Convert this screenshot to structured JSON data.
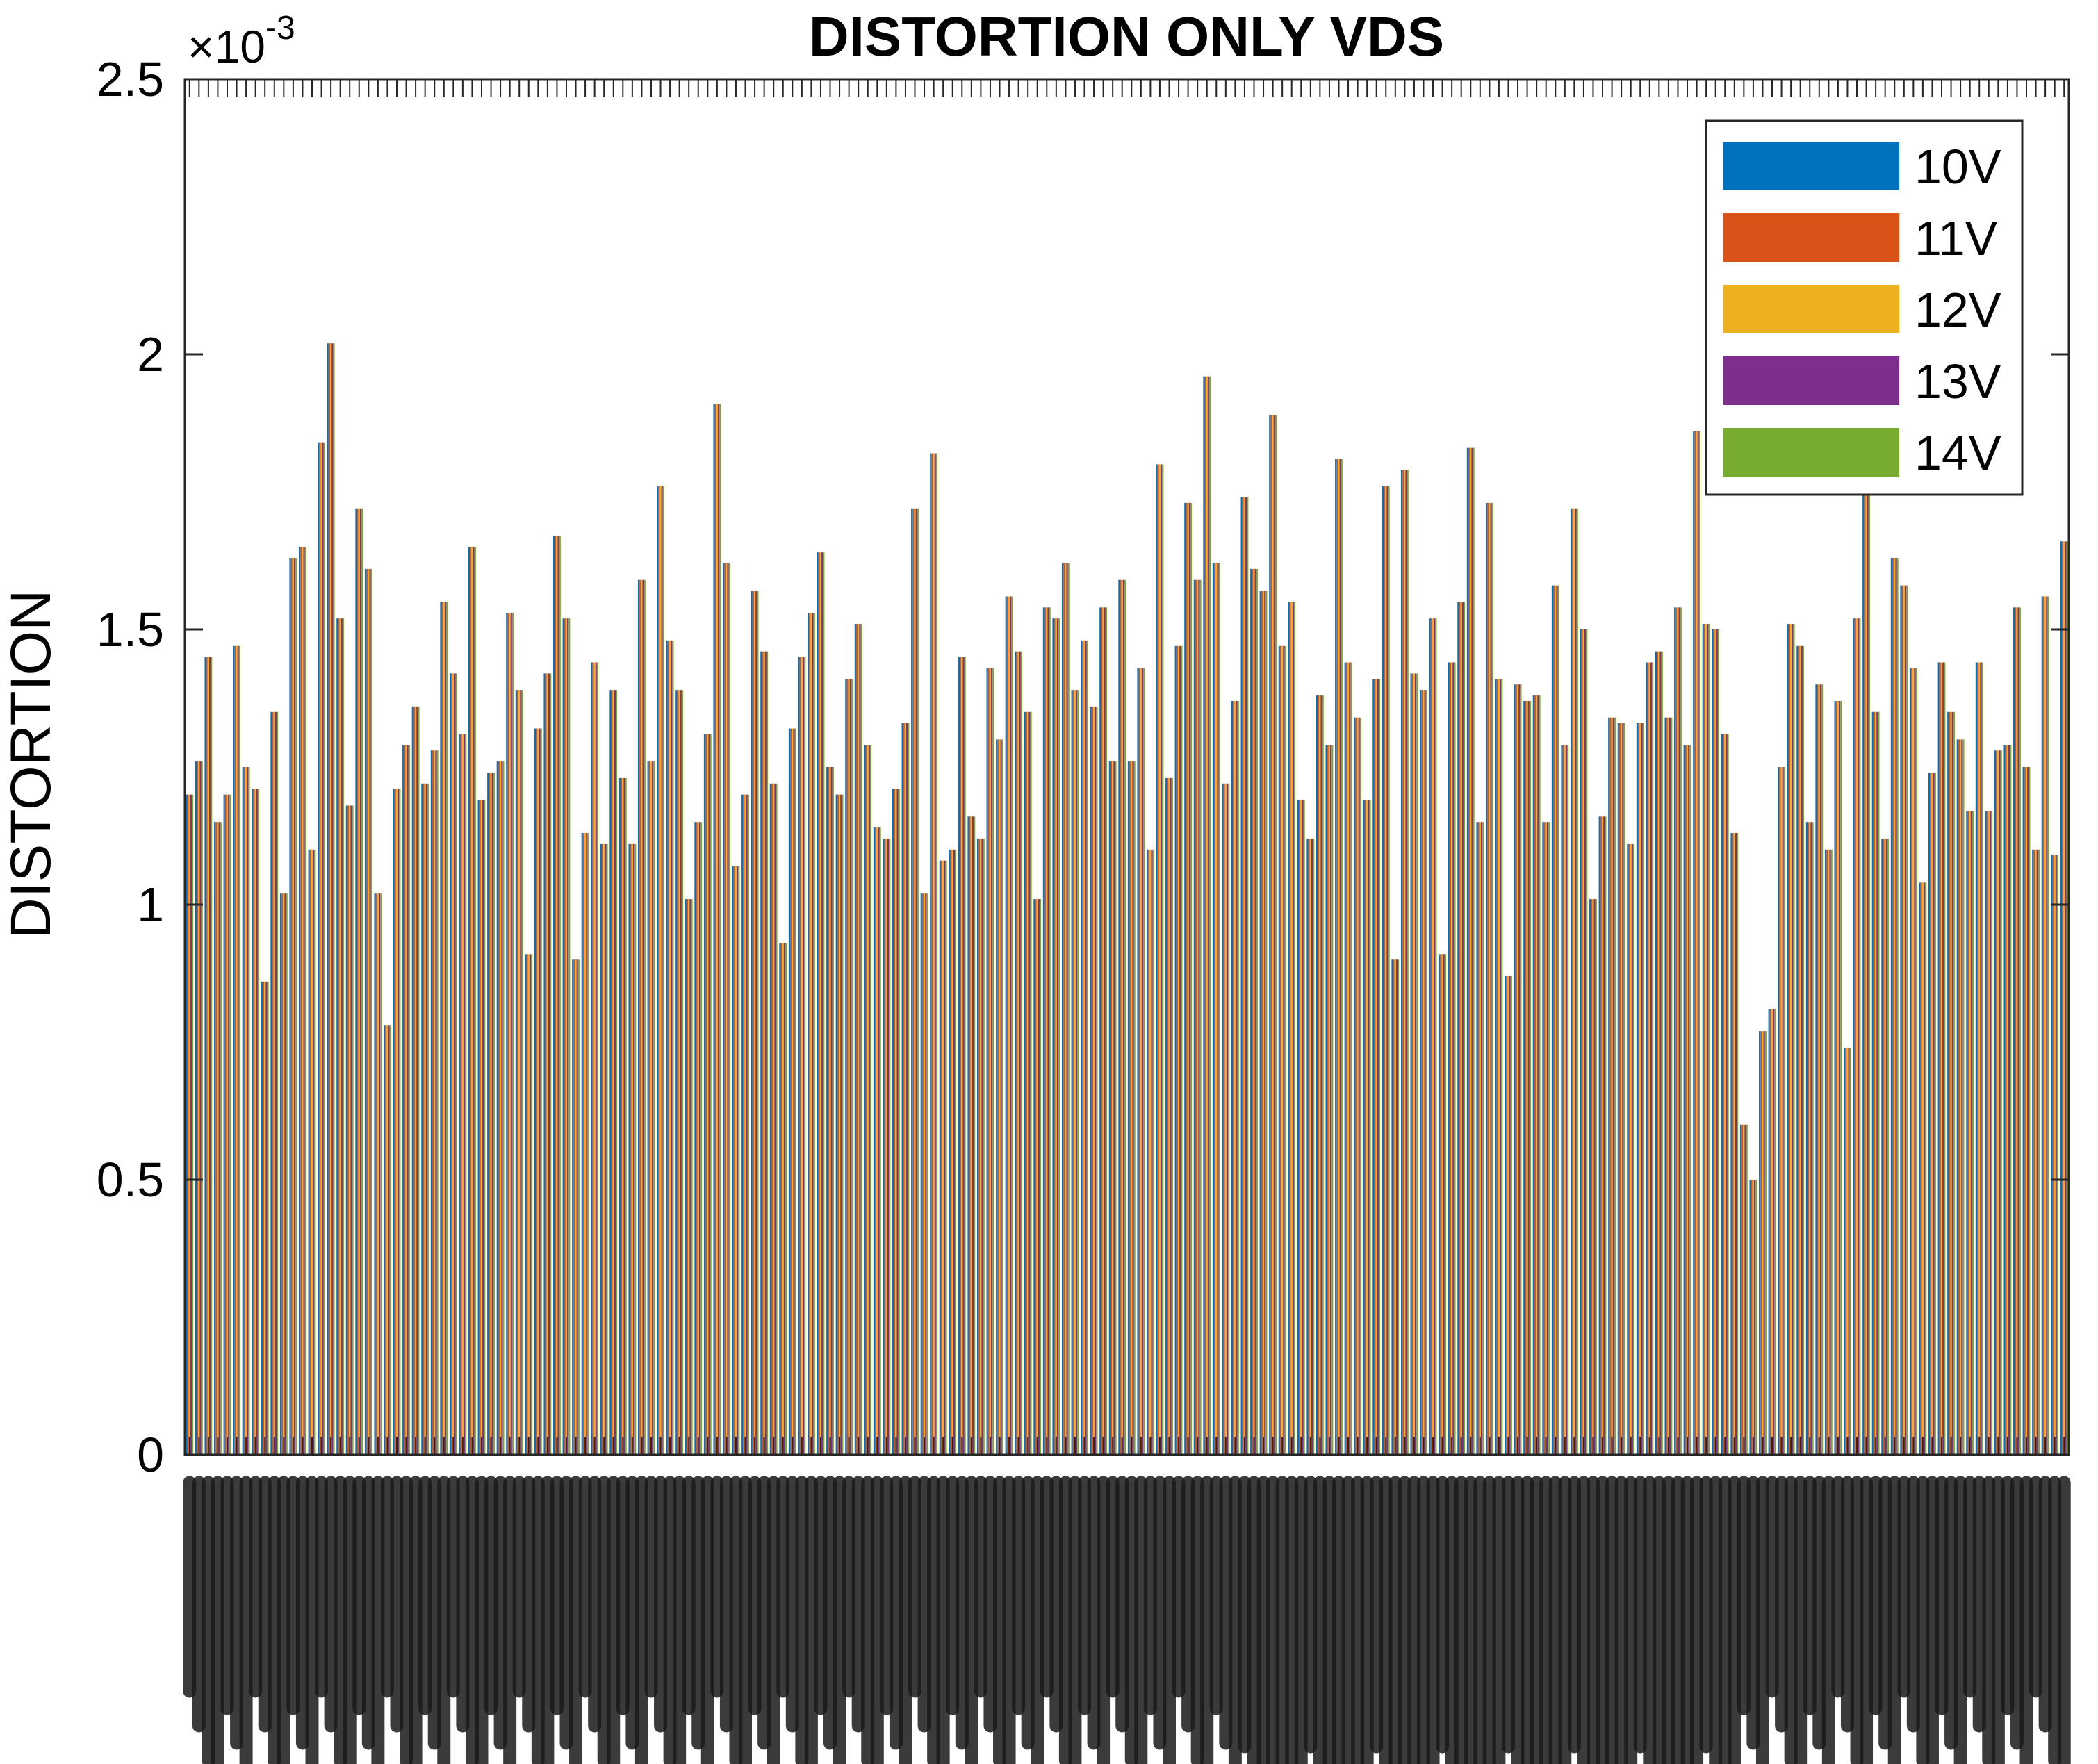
{
  "chart_data": {
    "type": "bar",
    "title": "DISTORTION ONLY VDS",
    "ylabel": "DISTORTION",
    "xlabel": "",
    "exponent_label": "×10",
    "exponent_power": "-3",
    "ylim": [
      0,
      2.5
    ],
    "yticks": [
      "0",
      "0.5",
      "1",
      "1.5",
      "2",
      "2.5"
    ],
    "ytick_values": [
      0,
      0.5,
      1,
      1.5,
      2,
      2.5
    ],
    "grid": false,
    "legend_position": "top-right",
    "x_tick_labels_note": "x tick labels are densely overlapping image filenames and are not legible",
    "series": [
      {
        "name": "10V",
        "color": "#0072BD"
      },
      {
        "name": "11V",
        "color": "#D95319"
      },
      {
        "name": "12V",
        "color": "#EDB120"
      },
      {
        "name": "13V",
        "color": "#7E2F8E"
      },
      {
        "name": "14V",
        "color": "#77AC30"
      }
    ],
    "values": [
      1.2,
      1.26,
      1.45,
      1.15,
      1.2,
      1.47,
      1.25,
      1.21,
      0.86,
      1.35,
      1.02,
      1.63,
      1.65,
      1.1,
      1.84,
      2.02,
      1.52,
      1.18,
      1.72,
      1.61,
      1.02,
      0.78,
      1.21,
      1.29,
      1.36,
      1.22,
      1.28,
      1.55,
      1.42,
      1.31,
      1.65,
      1.19,
      1.24,
      1.26,
      1.53,
      1.39,
      0.91,
      1.32,
      1.42,
      1.67,
      1.52,
      0.9,
      1.13,
      1.44,
      1.11,
      1.39,
      1.23,
      1.11,
      1.59,
      1.26,
      1.76,
      1.48,
      1.39,
      1.01,
      1.15,
      1.31,
      1.91,
      1.62,
      1.07,
      1.2,
      1.57,
      1.46,
      1.22,
      0.93,
      1.32,
      1.45,
      1.53,
      1.64,
      1.25,
      1.2,
      1.41,
      1.51,
      1.29,
      1.14,
      1.12,
      1.21,
      1.33,
      1.72,
      1.02,
      1.82,
      1.08,
      1.1,
      1.45,
      1.16,
      1.12,
      1.43,
      1.3,
      1.56,
      1.46,
      1.35,
      1.01,
      1.54,
      1.52,
      1.62,
      1.39,
      1.48,
      1.36,
      1.54,
      1.26,
      1.59,
      1.26,
      1.43,
      1.1,
      1.8,
      1.23,
      1.47,
      1.73,
      1.59,
      1.96,
      1.62,
      1.22,
      1.37,
      1.74,
      1.61,
      1.57,
      1.89,
      1.47,
      1.55,
      1.19,
      1.12,
      1.38,
      1.29,
      1.81,
      1.44,
      1.34,
      1.19,
      1.41,
      1.76,
      0.9,
      1.79,
      1.42,
      1.39,
      1.52,
      0.91,
      1.44,
      1.55,
      1.83,
      1.15,
      1.73,
      1.41,
      0.87,
      1.4,
      1.37,
      1.38,
      1.15,
      1.58,
      1.29,
      1.72,
      1.5,
      1.01,
      1.16,
      1.34,
      1.33,
      1.11,
      1.33,
      1.44,
      1.46,
      1.34,
      1.54,
      1.29,
      1.86,
      1.51,
      1.5,
      1.31,
      1.13,
      0.6,
      0.5,
      0.77,
      0.81,
      1.25,
      1.51,
      1.47,
      1.15,
      1.4,
      1.1,
      1.37,
      0.74,
      1.52,
      1.76,
      1.35,
      1.12,
      1.63,
      1.58,
      1.43,
      1.04,
      1.24,
      1.44,
      1.35,
      1.3,
      1.17,
      1.44,
      1.17,
      1.28,
      1.29,
      1.54,
      1.25,
      1.1,
      1.56,
      1.09,
      1.66
    ]
  }
}
